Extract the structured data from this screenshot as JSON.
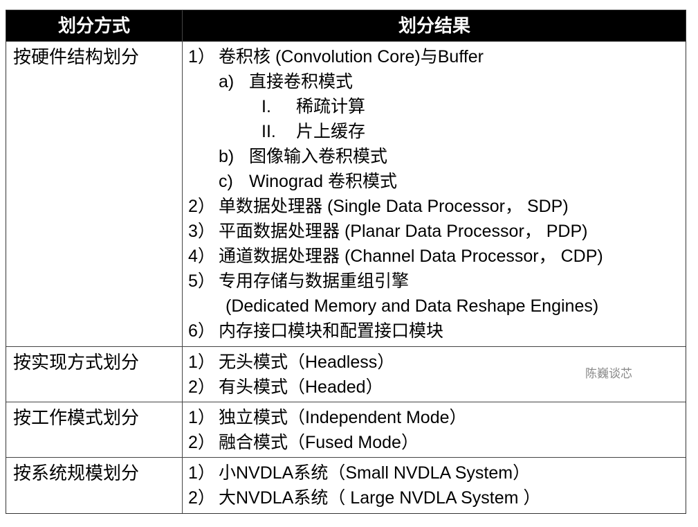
{
  "header": {
    "col1": "划分方式",
    "col2": "划分结果"
  },
  "rows": [
    {
      "method": "按硬件结构划分",
      "items": [
        {
          "level": 0,
          "marker": "1）",
          "text": "卷积核 (Convolution Core)与Buffer"
        },
        {
          "level": 1,
          "marker": "a)",
          "text": "直接卷积模式"
        },
        {
          "level": 2,
          "marker": "I.",
          "text": "稀疏计算"
        },
        {
          "level": 2,
          "marker": "II.",
          "text": "片上缓存"
        },
        {
          "level": 1,
          "marker": "b)",
          "text": "图像输入卷积模式"
        },
        {
          "level": 1,
          "marker": "c)",
          "text": "Winograd 卷积模式"
        },
        {
          "level": 0,
          "marker": "2）",
          "text": "单数据处理器 (Single Data Processor， SDP)"
        },
        {
          "level": 0,
          "marker": "3）",
          "text": "平面数据处理器 (Planar Data Processor， PDP)"
        },
        {
          "level": 0,
          "marker": "4）",
          "text": "通道数据处理器 (Channel Data Processor， CDP)"
        },
        {
          "level": 0,
          "marker": "5）",
          "text": "专用存储与数据重组引擎"
        },
        {
          "level": 3,
          "marker": "",
          "text": "(Dedicated Memory and Data Reshape Engines)"
        },
        {
          "level": 0,
          "marker": "6）",
          "text": "内存接口模块和配置接口模块"
        }
      ]
    },
    {
      "method": "按实现方式划分",
      "items": [
        {
          "level": 0,
          "marker": "1）",
          "text": "无头模式（Headless）"
        },
        {
          "level": 0,
          "marker": "2）",
          "text": "有头模式（Headed）"
        }
      ]
    },
    {
      "method": "按工作模式划分",
      "items": [
        {
          "level": 0,
          "marker": "1）",
          "text": "独立模式（Independent Mode）"
        },
        {
          "level": 0,
          "marker": "2）",
          "text": "融合模式（Fused Mode）"
        }
      ]
    },
    {
      "method": "按系统规模划分",
      "items": [
        {
          "level": 0,
          "marker": "1）",
          "text": "小NVDLA系统（Small NVDLA System）"
        },
        {
          "level": 0,
          "marker": "2）",
          "text": "大NVDLA系统（ Large NVDLA System ）"
        }
      ]
    }
  ],
  "watermark": "陈巍谈芯"
}
